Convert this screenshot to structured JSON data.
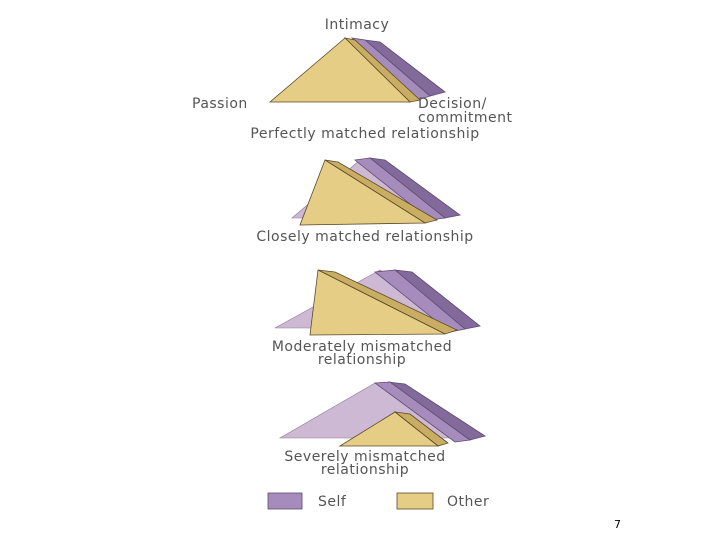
{
  "axis_labels": {
    "top": "Intimacy",
    "left": "Passion",
    "right": [
      "Decision/",
      "commitment"
    ]
  },
  "panels": [
    {
      "caption": [
        "Perfectly matched relationship"
      ]
    },
    {
      "caption": [
        "Closely matched relationship"
      ]
    },
    {
      "caption": [
        "Moderately mismatched",
        "relationship"
      ]
    },
    {
      "caption": [
        "Severely mismatched",
        "relationship"
      ]
    }
  ],
  "legend": [
    {
      "label": "Self"
    },
    {
      "label": "Other"
    }
  ],
  "page_number": "7"
}
